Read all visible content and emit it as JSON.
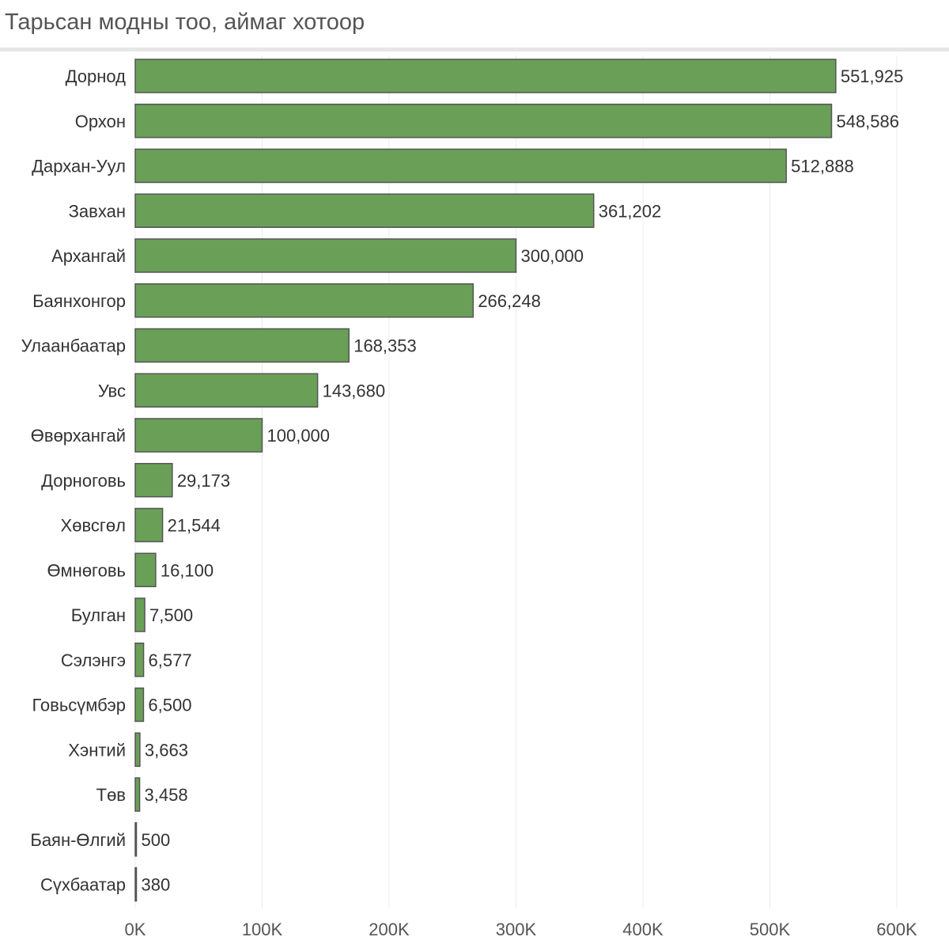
{
  "chart_data": {
    "type": "bar",
    "orientation": "horizontal",
    "title": "Тарьсан модны тоо, аймаг хотоор",
    "xlabel": "",
    "ylabel": "",
    "categories": [
      "Дорнод",
      "Орхон",
      "Дархан-Уул",
      "Завхан",
      "Архангай",
      "Баянхонгор",
      "Улаанбаатар",
      "Увс",
      "Өвөрхангай",
      "Дорноговь",
      "Хөвсгөл",
      "Өмнөговь",
      "Булган",
      "Сэлэнгэ",
      "Говьсүмбэр",
      "Хэнтий",
      "Төв",
      "Баян-Өлгий",
      "Сүхбаатар"
    ],
    "values": [
      551925,
      548586,
      512888,
      361202,
      300000,
      266248,
      168353,
      143680,
      100000,
      29173,
      21544,
      16100,
      7500,
      6577,
      6500,
      3663,
      3458,
      500,
      380
    ],
    "value_labels": [
      "551,925",
      "548,586",
      "512,888",
      "361,202",
      "300,000",
      "266,248",
      "168,353",
      "143,680",
      "100,000",
      "29,173",
      "21,544",
      "16,100",
      "7,500",
      "6,577",
      "6,500",
      "3,663",
      "3,458",
      "500",
      "380"
    ],
    "xlim": [
      0,
      600000
    ],
    "xticks": [
      0,
      100000,
      200000,
      300000,
      400000,
      500000,
      600000
    ],
    "xtick_labels": [
      "0K",
      "100K",
      "200K",
      "300K",
      "400K",
      "500K",
      "600K"
    ],
    "grid": "vertical",
    "bar_color": "#6a9f58",
    "bar_edge_color": "#555555"
  }
}
